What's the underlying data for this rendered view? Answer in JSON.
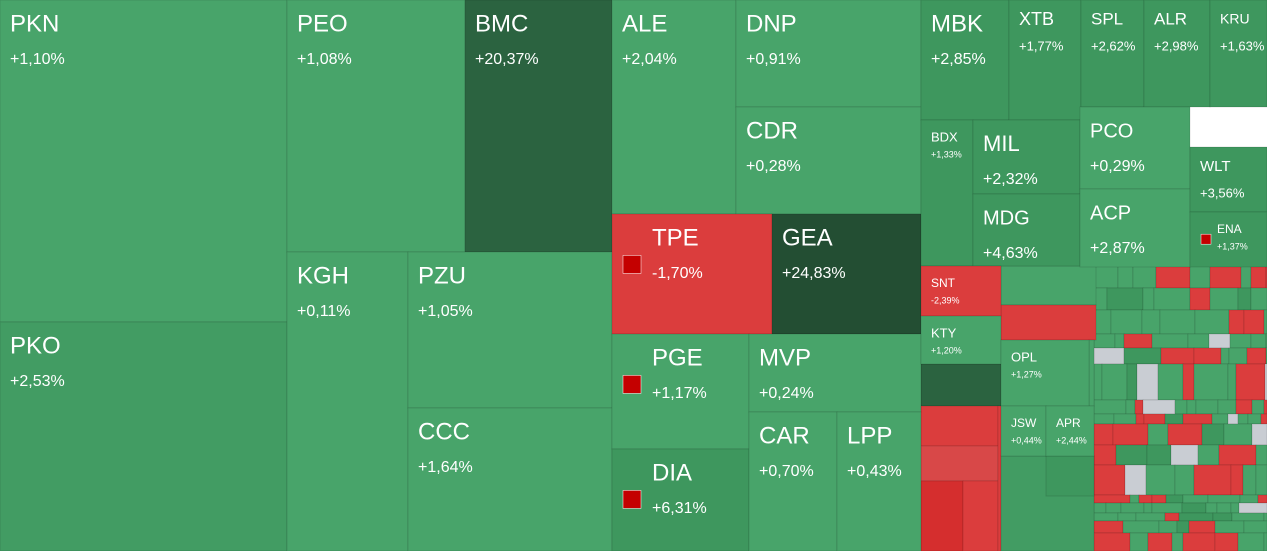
{
  "tiles": [
    {
      "ticker": "PKN",
      "change": "+1,10%"
    },
    {
      "ticker": "PKO",
      "change": "+2,53%"
    },
    {
      "ticker": "PEO",
      "change": "+1,08%"
    },
    {
      "ticker": "BMC",
      "change": "+20,37%"
    },
    {
      "ticker": "KGH",
      "change": "+0,11%"
    },
    {
      "ticker": "PZU",
      "change": "+1,05%"
    },
    {
      "ticker": "CCC",
      "change": "+1,64%"
    },
    {
      "ticker": "ALE",
      "change": "+2,04%"
    },
    {
      "ticker": "DNP",
      "change": "+0,91%"
    },
    {
      "ticker": "CDR",
      "change": "+0,28%"
    },
    {
      "ticker": "TPE",
      "change": "-1,70%"
    },
    {
      "ticker": "GEA",
      "change": "+24,83%"
    },
    {
      "ticker": "PGE",
      "change": "+1,17%"
    },
    {
      "ticker": "DIA",
      "change": "+6,31%"
    },
    {
      "ticker": "MVP",
      "change": "+0,24%"
    },
    {
      "ticker": "CAR",
      "change": "+0,70%"
    },
    {
      "ticker": "LPP",
      "change": "+0,43%"
    },
    {
      "ticker": "MBK",
      "change": "+2,85%"
    },
    {
      "ticker": "XTB",
      "change": "+1,77%"
    },
    {
      "ticker": "SPL",
      "change": "+2,62%"
    },
    {
      "ticker": "ALR",
      "change": "+2,98%"
    },
    {
      "ticker": "KRU",
      "change": "+1,63%"
    },
    {
      "ticker": "BDX",
      "change": "+1,33%"
    },
    {
      "ticker": "MIL",
      "change": "+2,32%"
    },
    {
      "ticker": "MDG",
      "change": "+4,63%"
    },
    {
      "ticker": "PCO",
      "change": "+0,29%"
    },
    {
      "ticker": "ACP",
      "change": "+2,87%"
    },
    {
      "ticker": "WLT",
      "change": "+3,56%"
    },
    {
      "ticker": "ENA",
      "change": "+1,37%"
    },
    {
      "ticker": "SNT",
      "change": "-2,39%"
    },
    {
      "ticker": "KTY",
      "change": "+1,20%"
    },
    {
      "ticker": "OPL",
      "change": "+1,27%"
    },
    {
      "ticker": "JSW",
      "change": "+0,44%"
    },
    {
      "ticker": "APR",
      "change": "+2,44%"
    }
  ]
}
